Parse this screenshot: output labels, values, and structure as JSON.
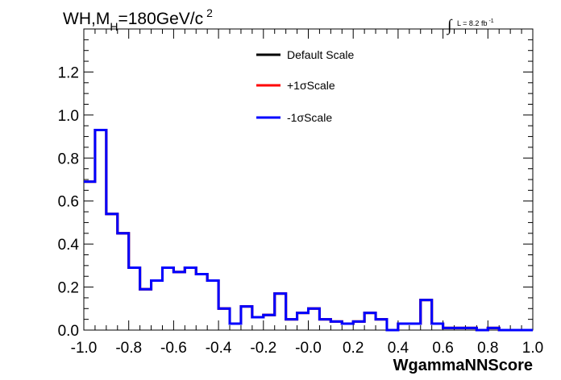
{
  "chart_data": {
    "type": "line",
    "title_main": "WH,M",
    "title_sub": "H",
    "title_rest": "=180GeV/c",
    "title_sup": "2",
    "lumi_integral": "∫",
    "lumi_text": "L = 8.2 fb",
    "lumi_sup": "-1",
    "xlabel": "WgammaNNScore",
    "ylabel": "",
    "xlim": [
      -1.0,
      1.0
    ],
    "ylim": [
      0,
      1.4
    ],
    "x_ticks": [
      "-1.0",
      "-0.8",
      "-0.6",
      "-0.4",
      "-0.2",
      "-0.0",
      "0.2",
      "0.4",
      "0.6",
      "0.8",
      "1.0"
    ],
    "y_ticks": [
      "0.0",
      "0.2",
      "0.4",
      "0.6",
      "0.8",
      "1.0",
      "1.2"
    ],
    "legend_position": "top-center",
    "bin_edges": [
      -1.0,
      -0.95,
      -0.9,
      -0.85,
      -0.8,
      -0.75,
      -0.7,
      -0.65,
      -0.6,
      -0.55,
      -0.5,
      -0.45,
      -0.4,
      -0.35,
      -0.3,
      -0.25,
      -0.2,
      -0.15,
      -0.1,
      -0.05,
      0.0,
      0.05,
      0.1,
      0.15,
      0.2,
      0.25,
      0.3,
      0.35,
      0.4,
      0.45,
      0.5,
      0.55,
      0.6,
      0.65,
      0.7,
      0.75,
      0.8,
      0.85,
      0.9,
      0.95,
      1.0
    ],
    "series": [
      {
        "name": "Default Scale",
        "color": "#000000",
        "values": [
          0.69,
          0.93,
          0.54,
          0.45,
          0.29,
          0.19,
          0.23,
          0.29,
          0.27,
          0.29,
          0.26,
          0.23,
          0.1,
          0.03,
          0.11,
          0.06,
          0.07,
          0.17,
          0.05,
          0.08,
          0.1,
          0.05,
          0.04,
          0.03,
          0.04,
          0.08,
          0.05,
          0.0,
          0.03,
          0.03,
          0.14,
          0.03,
          0.01,
          0.01,
          0.01,
          0.0,
          0.01,
          0.0,
          0.0,
          0.0
        ]
      },
      {
        "name": "+1σScale",
        "color": "#ff0000",
        "values": [
          0.69,
          0.93,
          0.54,
          0.45,
          0.29,
          0.19,
          0.23,
          0.29,
          0.27,
          0.29,
          0.26,
          0.23,
          0.1,
          0.03,
          0.11,
          0.06,
          0.07,
          0.17,
          0.05,
          0.08,
          0.1,
          0.05,
          0.04,
          0.03,
          0.04,
          0.08,
          0.05,
          0.0,
          0.03,
          0.03,
          0.14,
          0.03,
          0.01,
          0.01,
          0.01,
          0.0,
          0.01,
          0.0,
          0.0,
          0.0
        ]
      },
      {
        "name": "-1σScale",
        "color": "#0000ff",
        "values": [
          0.69,
          0.93,
          0.54,
          0.45,
          0.29,
          0.19,
          0.23,
          0.29,
          0.27,
          0.29,
          0.26,
          0.23,
          0.1,
          0.03,
          0.11,
          0.06,
          0.07,
          0.17,
          0.05,
          0.08,
          0.1,
          0.05,
          0.04,
          0.03,
          0.04,
          0.08,
          0.05,
          0.0,
          0.03,
          0.03,
          0.14,
          0.03,
          0.01,
          0.01,
          0.01,
          0.0,
          0.01,
          0.0,
          0.0,
          0.0
        ]
      }
    ]
  }
}
